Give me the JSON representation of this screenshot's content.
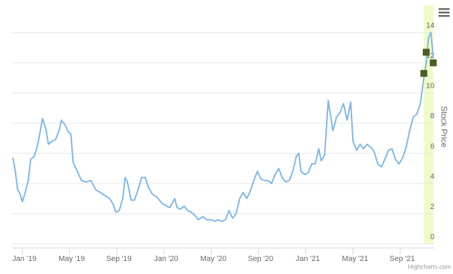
{
  "chart_data": {
    "type": "line",
    "y_axis_title": "Stock Price",
    "credits": "Highcharts.com",
    "grid": true,
    "y_axis_side": "right",
    "xlim": [
      -0.85,
      34.9
    ],
    "xticks": [
      {
        "value": 0,
        "label": "Jan '19"
      },
      {
        "value": 4,
        "label": "May '19"
      },
      {
        "value": 8,
        "label": "Sep '19"
      },
      {
        "value": 12,
        "label": "Jan '20"
      },
      {
        "value": 16,
        "label": "May '20"
      },
      {
        "value": 20,
        "label": "Sep '20"
      },
      {
        "value": 24,
        "label": "Jan '21"
      },
      {
        "value": 28,
        "label": "May '21"
      },
      {
        "value": 32,
        "label": "Sep '21"
      }
    ],
    "ylim": [
      0,
      15.8
    ],
    "yticks": [
      0,
      2,
      4,
      6,
      8,
      10,
      12,
      14
    ],
    "plot_band": {
      "from": 34.0,
      "to": 34.8,
      "color": "#eefbc8"
    },
    "series": [
      {
        "color": "#7cb5ec",
        "x": [
          -0.8,
          -0.6,
          -0.4,
          -0.2,
          0,
          0.2,
          0.5,
          0.7,
          1.0,
          1.2,
          1.4,
          1.7,
          2.0,
          2.2,
          2.5,
          2.8,
          3.1,
          3.3,
          3.6,
          3.9,
          4.1,
          4.3,
          4.6,
          5.0,
          5.4,
          5.8,
          6.2,
          6.6,
          7.0,
          7.4,
          7.7,
          7.9,
          8.2,
          8.5,
          8.7,
          8.9,
          9.2,
          9.5,
          9.8,
          10.1,
          10.4,
          10.7,
          11.0,
          11.4,
          11.8,
          12.2,
          12.5,
          12.9,
          13.1,
          13.4,
          13.7,
          14.0,
          14.3,
          14.6,
          14.9,
          15.3,
          15.6,
          16.0,
          16.3,
          16.6,
          16.9,
          17.2,
          17.5,
          17.8,
          18.1,
          18.4,
          18.7,
          19.0,
          19.3,
          19.6,
          19.9,
          20.2,
          20.5,
          20.8,
          21.1,
          21.4,
          21.7,
          22.0,
          22.3,
          22.6,
          22.9,
          23.2,
          23.4,
          23.6,
          23.9,
          24.2,
          24.5,
          24.8,
          25.1,
          25.3,
          25.6,
          25.9,
          26.1,
          26.3,
          26.6,
          26.9,
          27.2,
          27.5,
          27.8,
          28.0,
          28.3,
          28.6,
          28.9,
          29.2,
          29.5,
          29.8,
          30.1,
          30.4,
          30.7,
          31.0,
          31.3,
          31.6,
          31.9,
          32.2,
          32.5,
          32.8,
          33.1,
          33.4,
          33.7,
          34.0,
          34.2,
          34.4,
          34.6,
          34.8
        ],
        "values": [
          5.7,
          4.8,
          3.6,
          3.3,
          2.8,
          3.3,
          4.2,
          5.6,
          5.8,
          6.3,
          7.0,
          8.3,
          7.6,
          6.6,
          6.8,
          6.9,
          7.5,
          8.2,
          7.9,
          7.4,
          7.3,
          5.4,
          4.9,
          4.2,
          4.1,
          4.2,
          3.6,
          3.4,
          3.2,
          3.0,
          2.6,
          2.1,
          2.2,
          3.0,
          4.4,
          4.1,
          2.9,
          2.9,
          3.6,
          4.4,
          4.4,
          3.7,
          3.3,
          3.1,
          2.7,
          2.5,
          2.4,
          3.0,
          2.4,
          2.3,
          2.5,
          2.2,
          2.1,
          1.9,
          1.6,
          1.8,
          1.6,
          1.6,
          1.5,
          1.6,
          1.5,
          1.6,
          2.2,
          1.7,
          2.0,
          3.0,
          3.4,
          3.0,
          3.5,
          4.2,
          4.8,
          4.3,
          4.2,
          4.2,
          4.0,
          4.6,
          5.0,
          4.4,
          4.1,
          4.2,
          4.8,
          5.8,
          6.0,
          4.8,
          4.6,
          4.7,
          5.3,
          5.3,
          6.3,
          5.5,
          5.9,
          9.5,
          8.5,
          7.5,
          8.4,
          8.7,
          9.3,
          8.2,
          9.4,
          6.8,
          6.2,
          6.6,
          6.3,
          6.6,
          6.4,
          6.1,
          5.3,
          5.1,
          5.6,
          6.2,
          6.3,
          5.6,
          5.3,
          5.7,
          6.4,
          7.5,
          8.4,
          8.6,
          9.3,
          11.0,
          12.0,
          13.7,
          14.0,
          12.3
        ]
      }
    ],
    "markers": {
      "color": "#4b5e23",
      "x": [
        34.0,
        34.2,
        34.8
      ],
      "values": [
        11.3,
        12.7,
        12.0
      ]
    }
  }
}
